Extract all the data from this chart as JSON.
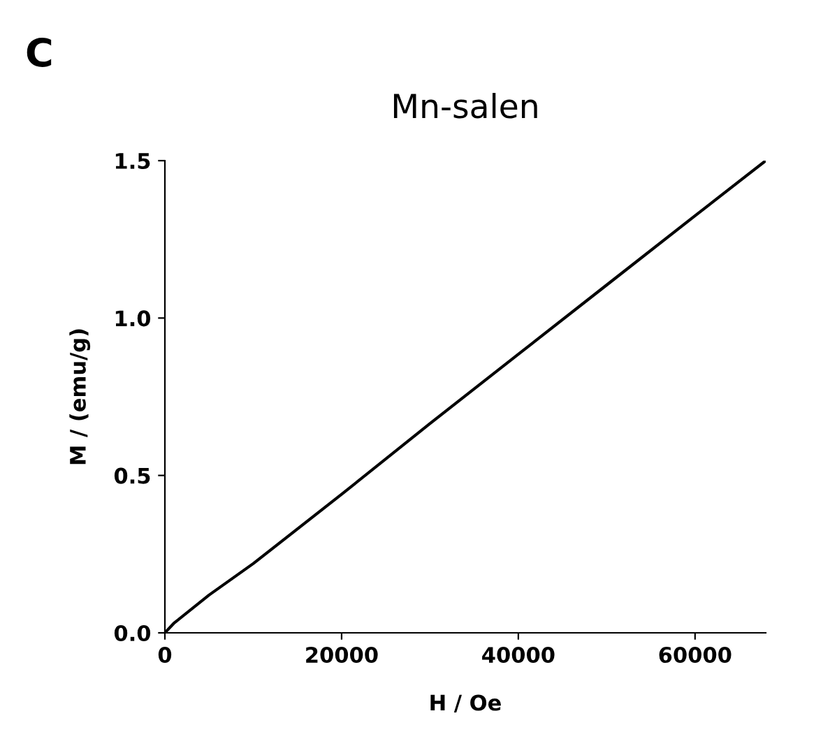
{
  "chart_data": {
    "type": "line",
    "title": "Mn-salen",
    "xlabel": "H / Oe",
    "ylabel": "M / (emu/g)",
    "annotations": [
      "C"
    ],
    "series": [
      {
        "color": "#000000",
        "x": [
          0,
          1000,
          5000,
          10000,
          20000,
          30000,
          40000,
          50000,
          60000,
          68000
        ],
        "values": [
          0,
          0.03,
          0.12,
          0.22,
          0.44,
          0.665,
          0.885,
          1.105,
          1.325,
          1.5
        ]
      }
    ],
    "xlim": [
      0,
      68000
    ],
    "ylim": [
      0,
      1.5
    ],
    "xticks": [
      0,
      20000,
      40000,
      60000
    ],
    "yticks": [
      {
        "value": 0,
        "label": "0.0"
      },
      0.5,
      {
        "value": 1,
        "label": "1.0"
      },
      1.5
    ],
    "grid": false,
    "legend": false,
    "marker": "none",
    "line_style": "solid"
  }
}
